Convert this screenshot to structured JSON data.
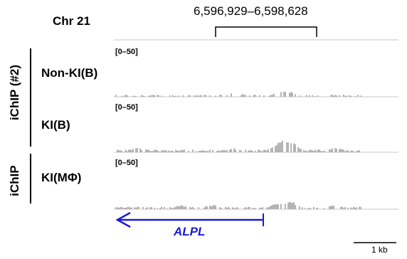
{
  "header": {
    "chromosome": "Chr 21",
    "coordinates": "6,596,929–6,598,628"
  },
  "groups": [
    {
      "label": "iChIP (#2)"
    },
    {
      "label": "iChIP"
    }
  ],
  "tracks": [
    {
      "label": "Non-KI(B)",
      "range": "[0–50]"
    },
    {
      "label": "KI(B)",
      "range": "[0–50]"
    },
    {
      "label": "KI(MΦ)",
      "range": "[0–50]"
    }
  ],
  "gene": {
    "name": "ALPL",
    "strand": "minus",
    "color": "#1a1ad6"
  },
  "scale_bar": {
    "label": "1 kb"
  },
  "colors": {
    "signal": "#b4b4b4",
    "baseline": "#c8c8c8"
  }
}
